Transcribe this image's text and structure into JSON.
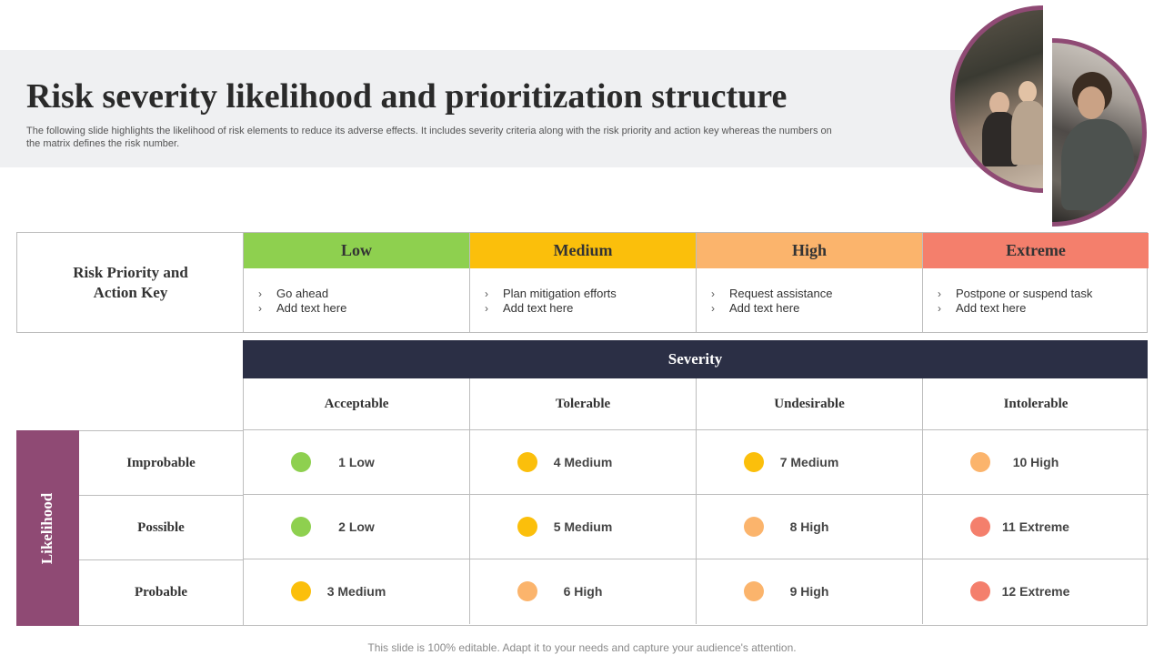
{
  "title": "Risk severity likelihood and prioritization structure",
  "subtitle": "The following slide highlights the likelihood of risk elements to reduce its adverse effects. It includes severity criteria along with the risk priority and action key whereas the numbers on the matrix defines the risk number.",
  "colors": {
    "low": "#8ed04f",
    "medium": "#fbbf0b",
    "high": "#fbb46c",
    "extreme": "#f47f6c",
    "severity_bar": "#2b2f45",
    "likelihood_bar": "#8f4a74"
  },
  "action_key": {
    "label": "Risk Priority and Action Key",
    "levels": [
      {
        "name": "Low",
        "items": [
          "Go ahead",
          "Add text here"
        ]
      },
      {
        "name": "Medium",
        "items": [
          "Plan mitigation efforts",
          "Add text here"
        ]
      },
      {
        "name": "High",
        "items": [
          "Request assistance",
          "Add text here"
        ]
      },
      {
        "name": "Extreme",
        "items": [
          "Postpone or suspend task",
          "Add text here"
        ]
      }
    ]
  },
  "matrix": {
    "severity_label": "Severity",
    "likelihood_label": "Likelihood",
    "columns": [
      "Acceptable",
      "Tolerable",
      "Undesirable",
      "Intolerable"
    ],
    "rows": [
      {
        "label": "Improbable",
        "cells": [
          {
            "text": "1 Low",
            "level": "low"
          },
          {
            "text": "4 Medium",
            "level": "medium"
          },
          {
            "text": "7 Medium",
            "level": "medium"
          },
          {
            "text": "10 High",
            "level": "high"
          }
        ]
      },
      {
        "label": "Possible",
        "cells": [
          {
            "text": "2 Low",
            "level": "low"
          },
          {
            "text": "5 Medium",
            "level": "medium"
          },
          {
            "text": "8 High",
            "level": "high"
          },
          {
            "text": "11 Extreme",
            "level": "extreme"
          }
        ]
      },
      {
        "label": "Probable",
        "cells": [
          {
            "text": "3 Medium",
            "level": "medium"
          },
          {
            "text": "6 High",
            "level": "high"
          },
          {
            "text": "9 High",
            "level": "high"
          },
          {
            "text": "12 Extreme",
            "level": "extreme"
          }
        ]
      }
    ]
  },
  "footer": "This slide is 100% editable. Adapt it to your needs and capture your audience's attention."
}
